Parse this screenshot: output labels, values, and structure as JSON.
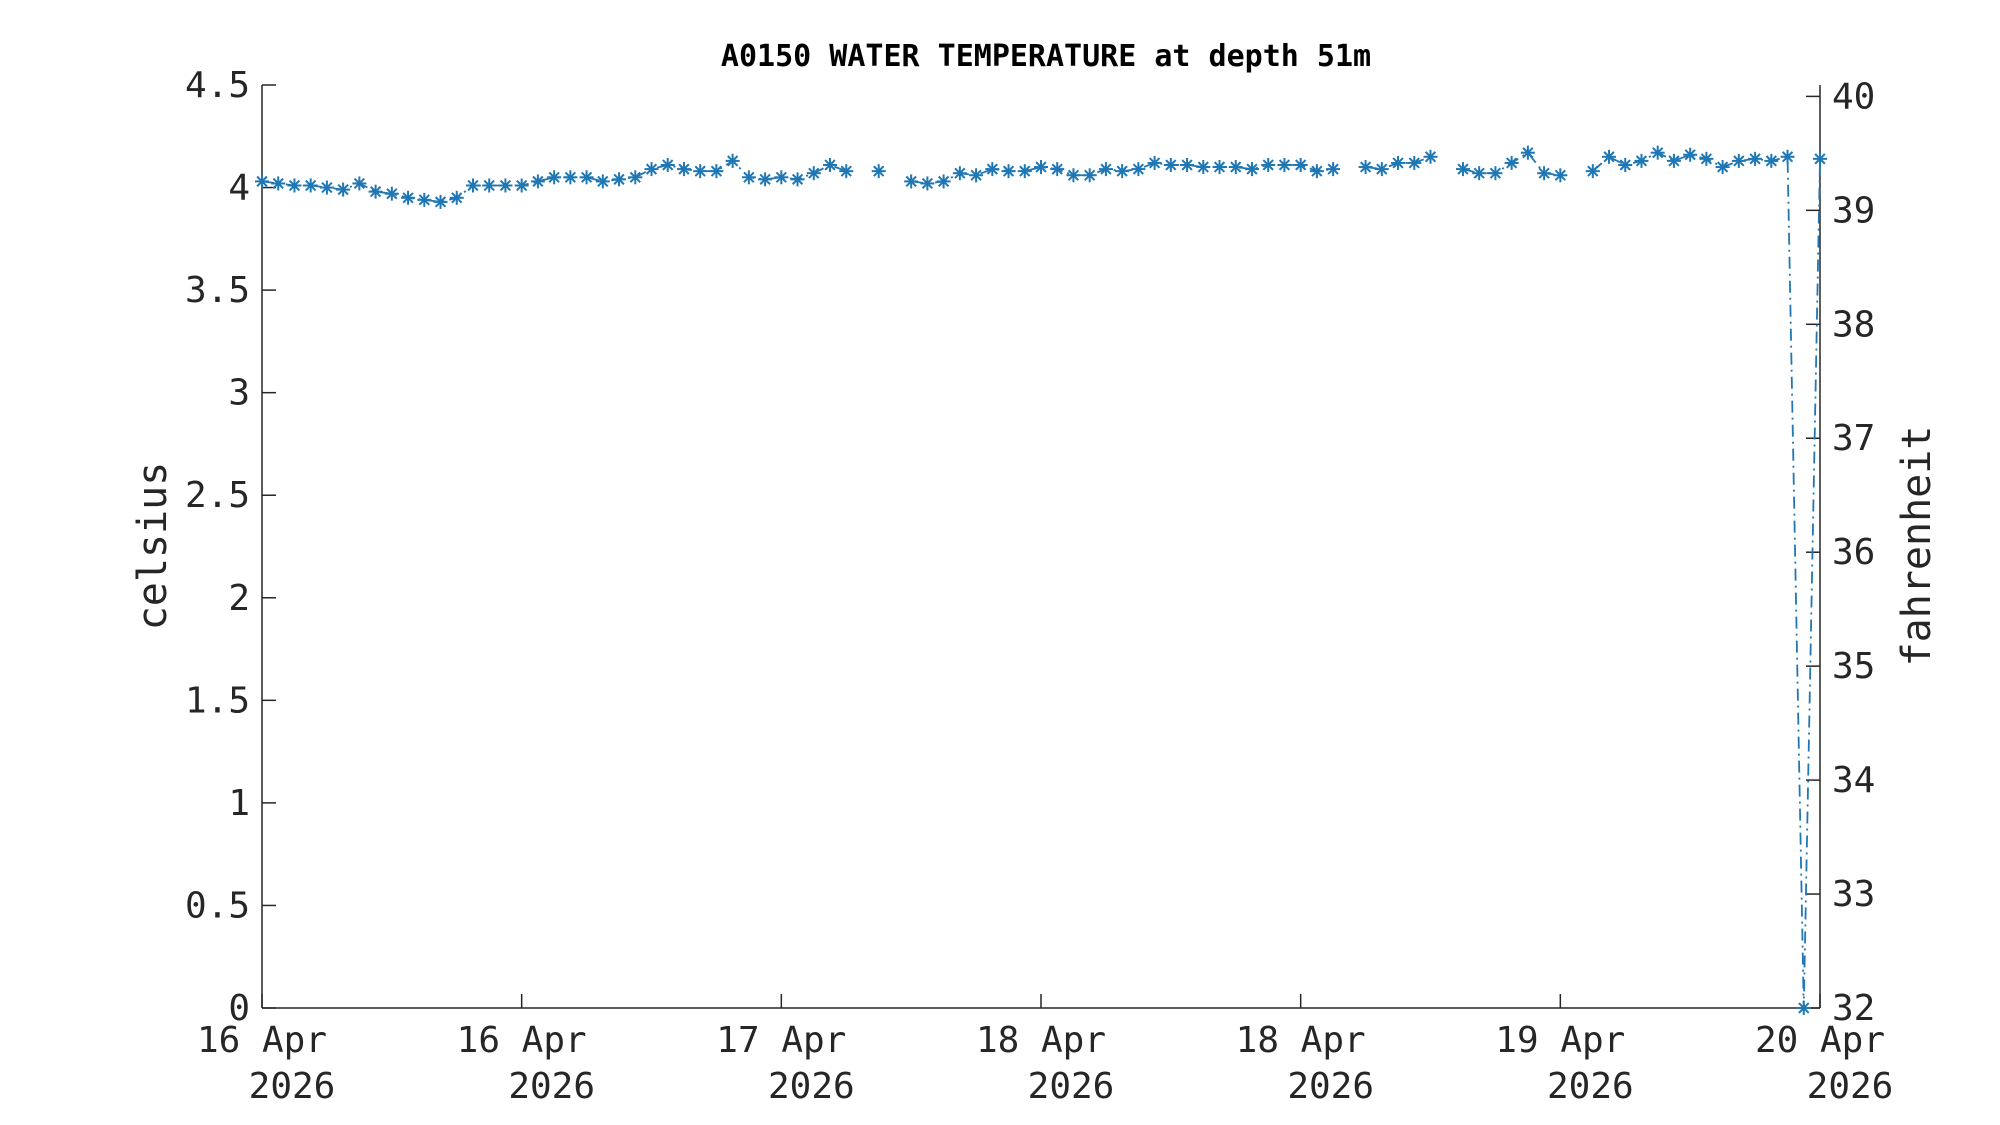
{
  "chart_data": {
    "type": "line",
    "title": "A0150 WATER TEMPERATURE at depth 51m",
    "ylabel": "celsius",
    "y2label": "fahrenheit",
    "ylim": [
      0,
      4.5
    ],
    "y2lim": [
      32,
      40.1
    ],
    "yticks": [
      "0",
      "0.5",
      "1",
      "1.5",
      "2",
      "2.5",
      "3",
      "3.5",
      "4",
      "4.5"
    ],
    "y2ticks": [
      "32",
      "33",
      "34",
      "35",
      "36",
      "37",
      "38",
      "39",
      "40"
    ],
    "xticks": [
      {
        "line1": "16 Apr",
        "line2": "2026"
      },
      {
        "line1": "16 Apr",
        "line2": "2026"
      },
      {
        "line1": "17 Apr",
        "line2": "2026"
      },
      {
        "line1": "18 Apr",
        "line2": "2026"
      },
      {
        "line1": "18 Apr",
        "line2": "2026"
      },
      {
        "line1": "19 Apr",
        "line2": "2026"
      },
      {
        "line1": "20 Apr",
        "line2": "2026"
      }
    ],
    "grid": false,
    "color": "#1f77b4",
    "marker": "asterisk",
    "line_style": "dash-dot",
    "series": [
      {
        "x": [
          "2026-04-16 00:00",
          "2026-04-16 01:00",
          "2026-04-16 02:00",
          "2026-04-16 03:00",
          "2026-04-16 04:00",
          "2026-04-16 05:00",
          "2026-04-16 06:00",
          "2026-04-16 07:00",
          "2026-04-16 08:00",
          "2026-04-16 09:00",
          "2026-04-16 10:00",
          "2026-04-16 11:00",
          "2026-04-16 12:00",
          "2026-04-16 13:00",
          "2026-04-16 14:00",
          "2026-04-16 15:00",
          "2026-04-16 16:00",
          "2026-04-16 17:00",
          "2026-04-16 18:00",
          "2026-04-16 19:00",
          "2026-04-16 20:00",
          "2026-04-16 21:00",
          "2026-04-16 22:00",
          "2026-04-16 23:00",
          "2026-04-17 00:00",
          "2026-04-17 01:00",
          "2026-04-17 02:00",
          "2026-04-17 03:00",
          "2026-04-17 04:00",
          "2026-04-17 05:00",
          "2026-04-17 06:00",
          "2026-04-17 07:00",
          "2026-04-17 08:00",
          "2026-04-17 09:00",
          "2026-04-17 10:00",
          "2026-04-17 11:00",
          "2026-04-17 12:00",
          "2026-04-17 13:00",
          "2026-04-17 14:00",
          null,
          "2026-04-17 16:00",
          "2026-04-17 17:00",
          "2026-04-17 18:00",
          "2026-04-17 19:00",
          "2026-04-17 20:00",
          "2026-04-17 21:00",
          "2026-04-17 22:00",
          "2026-04-17 23:00",
          "2026-04-18 00:00",
          "2026-04-18 01:00",
          "2026-04-18 02:00",
          "2026-04-18 03:00",
          "2026-04-18 04:00",
          "2026-04-18 05:00",
          "2026-04-18 06:00",
          "2026-04-18 07:00",
          "2026-04-18 08:00",
          "2026-04-18 09:00",
          "2026-04-18 10:00",
          "2026-04-18 11:00",
          "2026-04-18 12:00",
          "2026-04-18 13:00",
          "2026-04-18 14:00",
          "2026-04-18 15:00",
          "2026-04-18 16:00",
          "2026-04-18 17:00",
          "2026-04-18 18:00",
          null,
          "2026-04-18 20:00",
          "2026-04-18 21:00",
          "2026-04-18 22:00",
          "2026-04-18 23:00",
          "2026-04-19 00:00",
          null,
          "2026-04-19 02:00",
          "2026-04-19 03:00",
          "2026-04-19 04:00",
          "2026-04-19 05:00",
          "2026-04-19 06:00",
          "2026-04-19 07:00",
          "2026-04-19 08:00",
          null,
          "2026-04-19 10:00",
          "2026-04-19 11:00",
          "2026-04-19 12:00",
          "2026-04-19 13:00",
          "2026-04-19 14:00",
          "2026-04-19 15:00",
          "2026-04-19 16:00",
          "2026-04-19 17:00",
          "2026-04-19 18:00",
          "2026-04-19 19:00",
          "2026-04-19 20:00",
          "2026-04-19 21:00",
          "2026-04-19 22:00",
          "2026-04-19 23:00",
          "2026-04-20 00:00"
        ],
        "y": [
          4.03,
          4.02,
          4.01,
          4.01,
          4.0,
          3.99,
          4.02,
          3.98,
          3.97,
          3.95,
          3.94,
          3.93,
          3.95,
          4.01,
          4.01,
          4.01,
          4.01,
          4.03,
          4.05,
          4.05,
          4.05,
          4.03,
          4.04,
          4.05,
          4.09,
          4.11,
          4.09,
          4.08,
          4.08,
          4.13,
          4.05,
          4.04,
          4.05,
          4.04,
          4.07,
          4.11,
          4.08,
          null,
          4.08,
          null,
          4.03,
          4.02,
          4.03,
          4.07,
          4.06,
          4.09,
          4.08,
          4.08,
          4.1,
          4.09,
          4.06,
          4.06,
          4.09,
          4.08,
          4.09,
          4.12,
          4.11,
          4.11,
          4.1,
          4.1,
          4.1,
          4.09,
          4.11,
          4.11,
          4.11,
          4.08,
          4.09,
          null,
          4.1,
          4.09,
          4.12,
          4.12,
          4.15,
          null,
          4.09,
          4.07,
          4.07,
          4.12,
          4.17,
          4.07,
          4.06,
          null,
          4.08,
          4.15,
          4.11,
          4.13,
          4.17,
          4.13,
          4.16,
          4.14,
          4.1,
          4.13,
          4.14,
          4.13,
          4.15,
          0.0,
          4.14
        ]
      }
    ]
  }
}
